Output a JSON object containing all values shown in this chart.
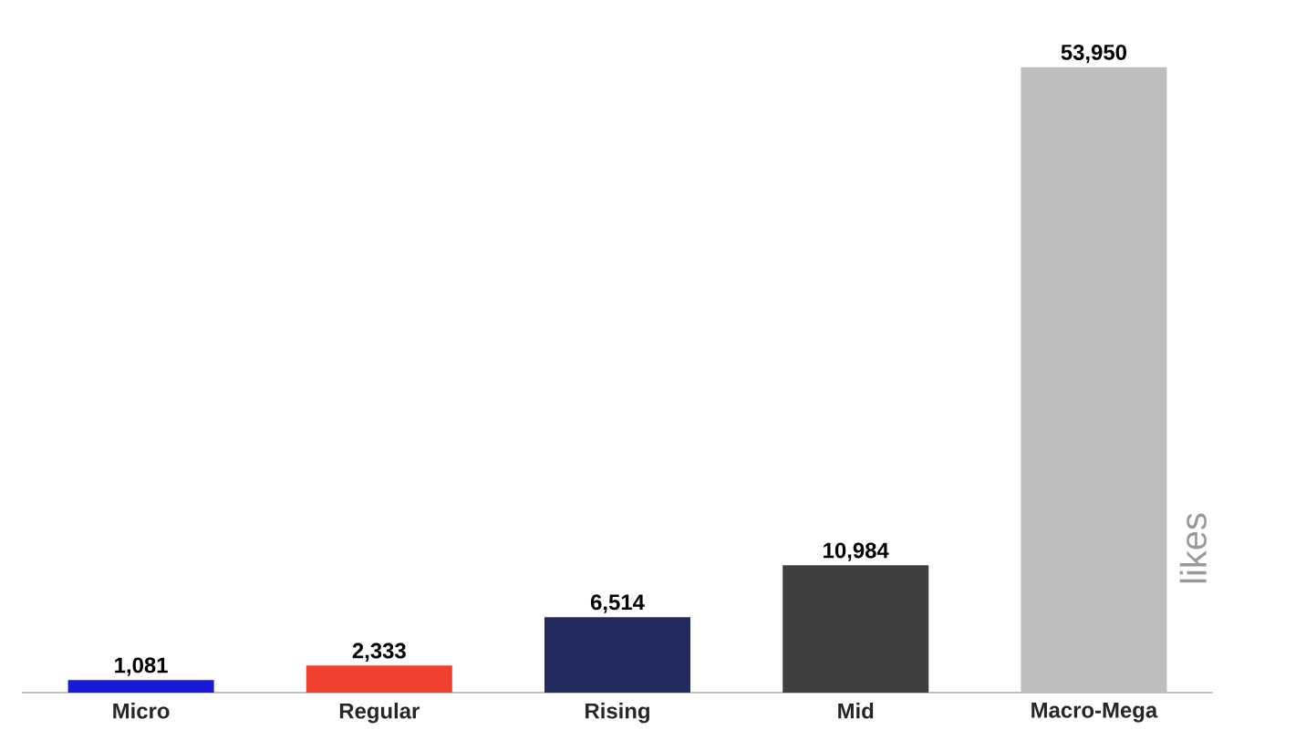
{
  "chart_data": {
    "type": "bar",
    "ylabel": "likes",
    "categories": [
      "Micro",
      "Regular",
      "Rising",
      "Mid",
      "Macro-Mega"
    ],
    "values": [
      1081,
      2333,
      6514,
      10984,
      53950
    ],
    "colors": [
      "#1a1ad6",
      "#f0412e",
      "#232a5e",
      "#3f3f3f",
      "#bdbdbd"
    ],
    "value_labels": [
      "1,081",
      "2,333",
      "6,514",
      "10,984",
      "53,950"
    ]
  }
}
